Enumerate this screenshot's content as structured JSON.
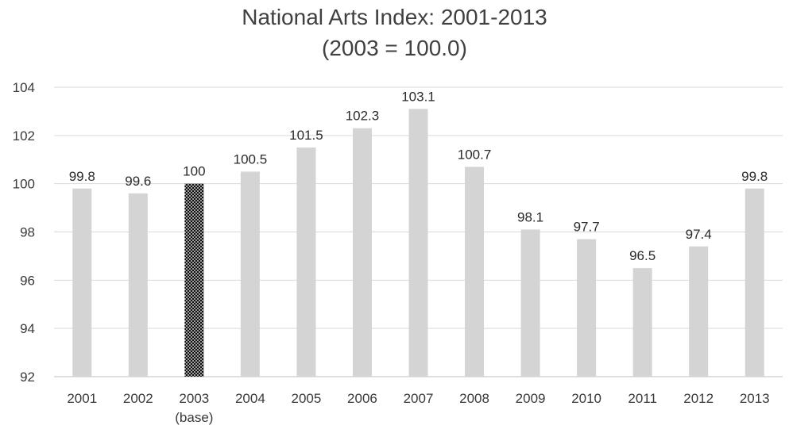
{
  "chart_data": {
    "type": "bar",
    "title": "National Arts Index: 2001-2013",
    "subtitle": "(2003 = 100.0)",
    "categories": [
      "2001",
      "2002",
      "2003",
      "2004",
      "2005",
      "2006",
      "2007",
      "2008",
      "2009",
      "2010",
      "2011",
      "2012",
      "2013"
    ],
    "category_sublabels": [
      "",
      "",
      "(base)",
      "",
      "",
      "",
      "",
      "",
      "",
      "",
      "",
      "",
      ""
    ],
    "values": [
      99.8,
      99.6,
      100,
      100.5,
      101.5,
      102.3,
      103.1,
      100.7,
      98.1,
      97.7,
      96.5,
      97.4,
      99.8
    ],
    "value_labels": [
      "99.8",
      "99.6",
      "100",
      "100.5",
      "101.5",
      "102.3",
      "103.1",
      "100.7",
      "98.1",
      "97.7",
      "96.5",
      "97.4",
      "99.8"
    ],
    "ylim": [
      92,
      104
    ],
    "yticks": [
      92,
      94,
      96,
      98,
      100,
      102,
      104
    ],
    "xlabel": "",
    "ylabel": "",
    "grid": true,
    "highlight_index": 2,
    "colors": {
      "bar": "#d4d4d4",
      "highlight": "#111111",
      "grid": "#d9d9d9",
      "text": "#404040"
    }
  }
}
